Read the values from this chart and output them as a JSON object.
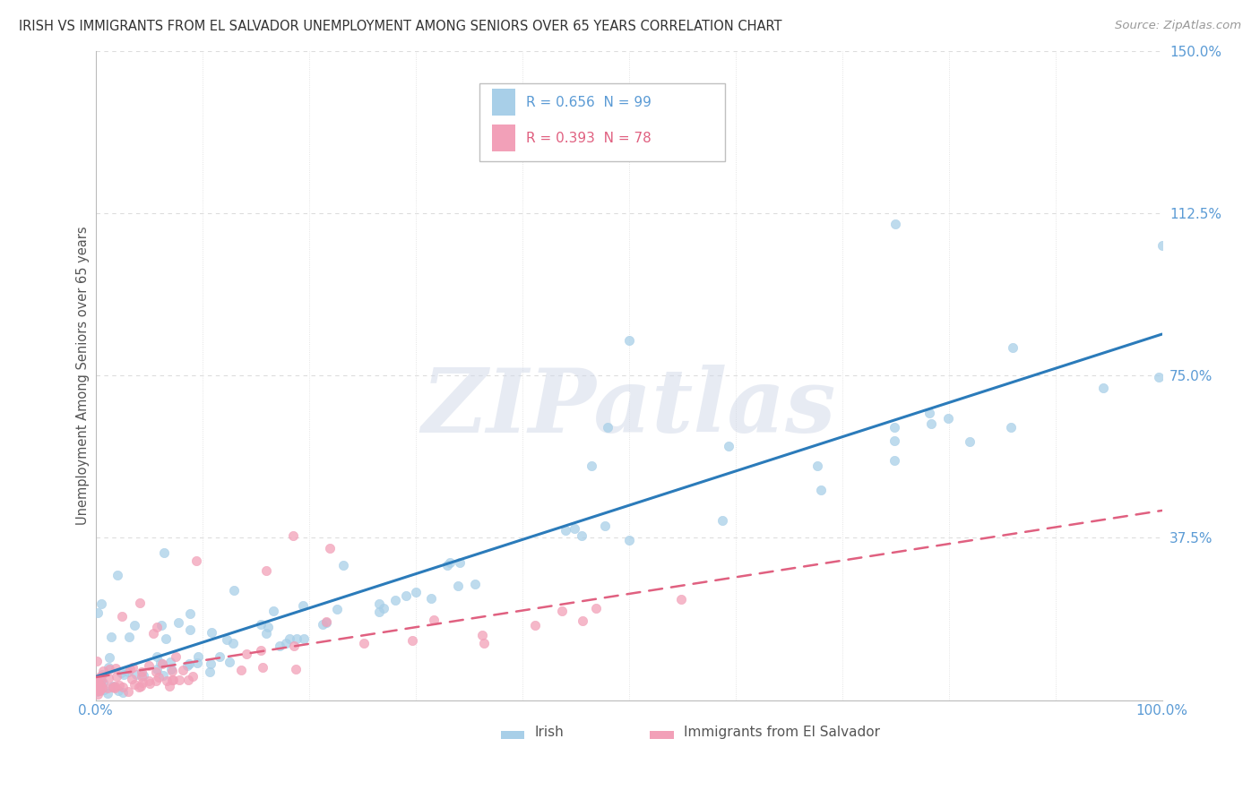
{
  "title": "IRISH VS IMMIGRANTS FROM EL SALVADOR UNEMPLOYMENT AMONG SENIORS OVER 65 YEARS CORRELATION CHART",
  "source": "Source: ZipAtlas.com",
  "ylabel": "Unemployment Among Seniors over 65 years",
  "xlim": [
    0.0,
    1.0
  ],
  "ylim": [
    0.0,
    1.5
  ],
  "ytick_positions": [
    0.375,
    0.75,
    1.125,
    1.5
  ],
  "ytick_labels": [
    "37.5%",
    "75.0%",
    "112.5%",
    "150.0%"
  ],
  "xtick_positions": [
    0.0,
    1.0
  ],
  "xtick_labels": [
    "0.0%",
    "100.0%"
  ],
  "legend1_text": "R = 0.656  N = 99",
  "legend2_text": "R = 0.393  N = 78",
  "blue_dot_color": "#a8cfe8",
  "pink_dot_color": "#f2a0b8",
  "blue_line_color": "#2b7bba",
  "pink_line_color": "#e06080",
  "tick_color": "#5b9bd5",
  "watermark_color": "#d0d8e8",
  "grid_color": "#dddddd",
  "background_color": "#ffffff",
  "watermark": "ZIPatlas",
  "legend_border_color": "#c0c0c0",
  "bottom_legend_labels": [
    "Irish",
    "Immigrants from El Salvador"
  ]
}
